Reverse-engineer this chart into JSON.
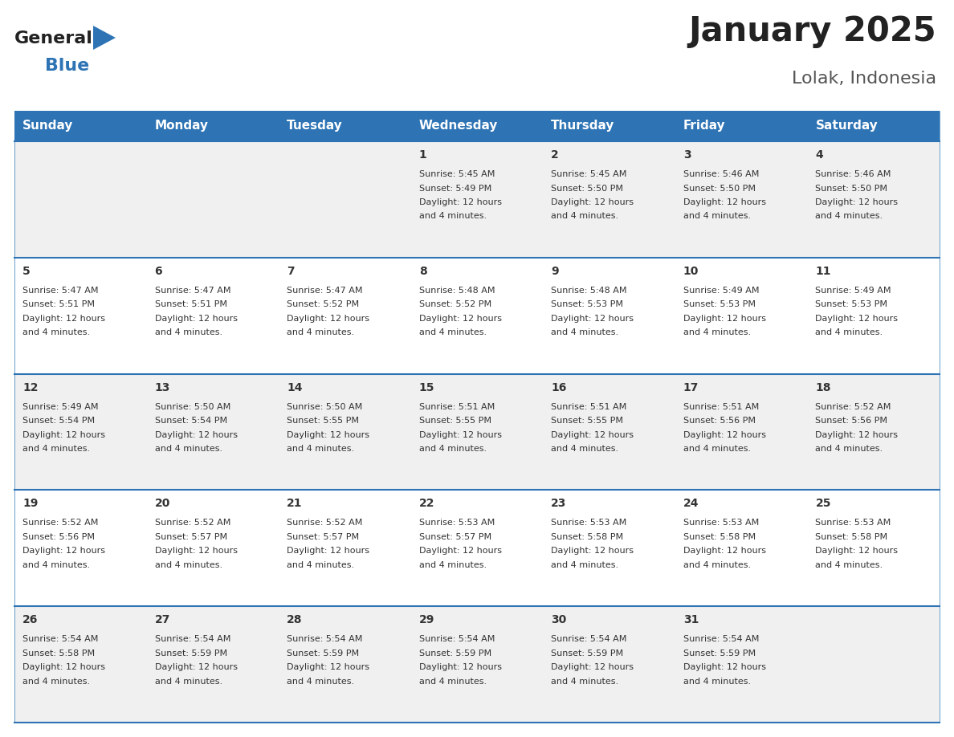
{
  "title": "January 2025",
  "subtitle": "Lolak, Indonesia",
  "header_bg": "#2E74B5",
  "header_text": "#FFFFFF",
  "row_bg_even": "#F0F0F0",
  "row_bg_odd": "#FFFFFF",
  "row_border": "#2E74B5",
  "day_headers": [
    "Sunday",
    "Monday",
    "Tuesday",
    "Wednesday",
    "Thursday",
    "Friday",
    "Saturday"
  ],
  "calendar": [
    [
      {
        "day": "",
        "sunrise": "",
        "sunset": "",
        "daylight": ""
      },
      {
        "day": "",
        "sunrise": "",
        "sunset": "",
        "daylight": ""
      },
      {
        "day": "",
        "sunrise": "",
        "sunset": "",
        "daylight": ""
      },
      {
        "day": "1",
        "sunrise": "5:45 AM",
        "sunset": "5:49 PM",
        "daylight": "12 hours\nand 4 minutes."
      },
      {
        "day": "2",
        "sunrise": "5:45 AM",
        "sunset": "5:50 PM",
        "daylight": "12 hours\nand 4 minutes."
      },
      {
        "day": "3",
        "sunrise": "5:46 AM",
        "sunset": "5:50 PM",
        "daylight": "12 hours\nand 4 minutes."
      },
      {
        "day": "4",
        "sunrise": "5:46 AM",
        "sunset": "5:50 PM",
        "daylight": "12 hours\nand 4 minutes."
      }
    ],
    [
      {
        "day": "5",
        "sunrise": "5:47 AM",
        "sunset": "5:51 PM",
        "daylight": "12 hours\nand 4 minutes."
      },
      {
        "day": "6",
        "sunrise": "5:47 AM",
        "sunset": "5:51 PM",
        "daylight": "12 hours\nand 4 minutes."
      },
      {
        "day": "7",
        "sunrise": "5:47 AM",
        "sunset": "5:52 PM",
        "daylight": "12 hours\nand 4 minutes."
      },
      {
        "day": "8",
        "sunrise": "5:48 AM",
        "sunset": "5:52 PM",
        "daylight": "12 hours\nand 4 minutes."
      },
      {
        "day": "9",
        "sunrise": "5:48 AM",
        "sunset": "5:53 PM",
        "daylight": "12 hours\nand 4 minutes."
      },
      {
        "day": "10",
        "sunrise": "5:49 AM",
        "sunset": "5:53 PM",
        "daylight": "12 hours\nand 4 minutes."
      },
      {
        "day": "11",
        "sunrise": "5:49 AM",
        "sunset": "5:53 PM",
        "daylight": "12 hours\nand 4 minutes."
      }
    ],
    [
      {
        "day": "12",
        "sunrise": "5:49 AM",
        "sunset": "5:54 PM",
        "daylight": "12 hours\nand 4 minutes."
      },
      {
        "day": "13",
        "sunrise": "5:50 AM",
        "sunset": "5:54 PM",
        "daylight": "12 hours\nand 4 minutes."
      },
      {
        "day": "14",
        "sunrise": "5:50 AM",
        "sunset": "5:55 PM",
        "daylight": "12 hours\nand 4 minutes."
      },
      {
        "day": "15",
        "sunrise": "5:51 AM",
        "sunset": "5:55 PM",
        "daylight": "12 hours\nand 4 minutes."
      },
      {
        "day": "16",
        "sunrise": "5:51 AM",
        "sunset": "5:55 PM",
        "daylight": "12 hours\nand 4 minutes."
      },
      {
        "day": "17",
        "sunrise": "5:51 AM",
        "sunset": "5:56 PM",
        "daylight": "12 hours\nand 4 minutes."
      },
      {
        "day": "18",
        "sunrise": "5:52 AM",
        "sunset": "5:56 PM",
        "daylight": "12 hours\nand 4 minutes."
      }
    ],
    [
      {
        "day": "19",
        "sunrise": "5:52 AM",
        "sunset": "5:56 PM",
        "daylight": "12 hours\nand 4 minutes."
      },
      {
        "day": "20",
        "sunrise": "5:52 AM",
        "sunset": "5:57 PM",
        "daylight": "12 hours\nand 4 minutes."
      },
      {
        "day": "21",
        "sunrise": "5:52 AM",
        "sunset": "5:57 PM",
        "daylight": "12 hours\nand 4 minutes."
      },
      {
        "day": "22",
        "sunrise": "5:53 AM",
        "sunset": "5:57 PM",
        "daylight": "12 hours\nand 4 minutes."
      },
      {
        "day": "23",
        "sunrise": "5:53 AM",
        "sunset": "5:58 PM",
        "daylight": "12 hours\nand 4 minutes."
      },
      {
        "day": "24",
        "sunrise": "5:53 AM",
        "sunset": "5:58 PM",
        "daylight": "12 hours\nand 4 minutes."
      },
      {
        "day": "25",
        "sunrise": "5:53 AM",
        "sunset": "5:58 PM",
        "daylight": "12 hours\nand 4 minutes."
      }
    ],
    [
      {
        "day": "26",
        "sunrise": "5:54 AM",
        "sunset": "5:58 PM",
        "daylight": "12 hours\nand 4 minutes."
      },
      {
        "day": "27",
        "sunrise": "5:54 AM",
        "sunset": "5:59 PM",
        "daylight": "12 hours\nand 4 minutes."
      },
      {
        "day": "28",
        "sunrise": "5:54 AM",
        "sunset": "5:59 PM",
        "daylight": "12 hours\nand 4 minutes."
      },
      {
        "day": "29",
        "sunrise": "5:54 AM",
        "sunset": "5:59 PM",
        "daylight": "12 hours\nand 4 minutes."
      },
      {
        "day": "30",
        "sunrise": "5:54 AM",
        "sunset": "5:59 PM",
        "daylight": "12 hours\nand 4 minutes."
      },
      {
        "day": "31",
        "sunrise": "5:54 AM",
        "sunset": "5:59 PM",
        "daylight": "12 hours\nand 4 minutes."
      },
      {
        "day": "",
        "sunrise": "",
        "sunset": "",
        "daylight": ""
      }
    ]
  ],
  "logo_general_color": "#222222",
  "logo_blue_color": "#2E74B5",
  "cell_text_color": "#333333",
  "cell_day_fontsize": 10,
  "cell_info_fontsize": 8,
  "header_fontsize": 11,
  "title_fontsize": 30,
  "subtitle_fontsize": 16
}
